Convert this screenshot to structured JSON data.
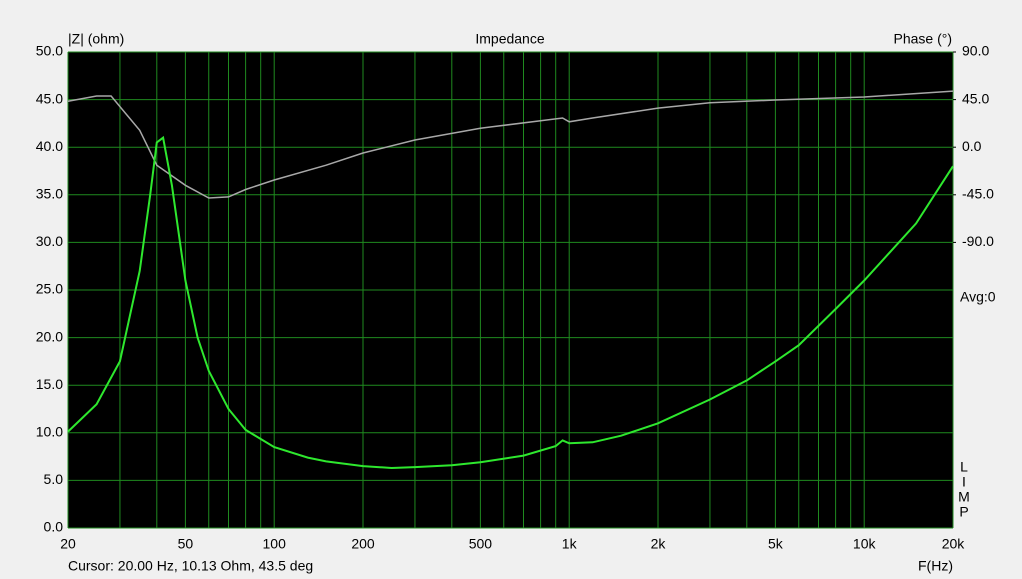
{
  "chart_data": {
    "type": "line",
    "title": "Impedance",
    "ylabel": "|Z| (ohm)",
    "y2label": "Phase (°)",
    "xlabel": "F(Hz)",
    "cursor": "Cursor: 20.00 Hz, 10.13 Ohm, 43.5 deg",
    "avg": "Avg:0",
    "side_label": [
      "L",
      "I",
      "M",
      "P"
    ],
    "xscale": "log",
    "xlim": [
      20,
      20000
    ],
    "xticks": [
      20,
      50,
      100,
      200,
      500,
      {
        "value": 1000,
        "label": "1k"
      },
      {
        "value": 2000,
        "label": "2k"
      },
      {
        "value": 5000,
        "label": "5k"
      },
      {
        "value": 10000,
        "label": "10k"
      },
      {
        "value": 20000,
        "label": "20k"
      }
    ],
    "xminor": [
      30,
      40,
      60,
      70,
      80,
      90,
      300,
      400,
      600,
      700,
      800,
      900,
      3000,
      4000,
      6000,
      7000,
      8000,
      9000
    ],
    "ylim": [
      0,
      50
    ],
    "yticks": [
      {
        "value": 0,
        "label": "0.0"
      },
      {
        "value": 5,
        "label": "5.0"
      },
      {
        "value": 10,
        "label": "10.0"
      },
      {
        "value": 15,
        "label": "15.0"
      },
      {
        "value": 20,
        "label": "20.0"
      },
      {
        "value": 25,
        "label": "25.0"
      },
      {
        "value": 30,
        "label": "30.0"
      },
      {
        "value": 35,
        "label": "35.0"
      },
      {
        "value": 40,
        "label": "40.0"
      },
      {
        "value": 45,
        "label": "45.0"
      },
      {
        "value": 50,
        "label": "50.0"
      }
    ],
    "y2lim": [
      -360,
      90
    ],
    "y2ticks": [
      {
        "value": 90,
        "label": "90.0"
      },
      {
        "value": 45,
        "label": "45.0"
      },
      {
        "value": 0,
        "label": "0.0"
      },
      {
        "value": -45,
        "label": "-45.0"
      },
      {
        "value": -90,
        "label": "-90.0"
      }
    ],
    "grid": true,
    "grid_color": "#1f8a1f",
    "background": "#000000",
    "series": [
      {
        "color": "#2ee82e",
        "x": [
          20,
          25,
          30,
          35,
          38,
          40,
          42,
          45,
          50,
          55,
          60,
          70,
          80,
          100,
          130,
          150,
          200,
          250,
          300,
          400,
          500,
          700,
          900,
          950,
          1000,
          1200,
          1500,
          2000,
          3000,
          4000,
          5000,
          6000,
          8000,
          10000,
          15000,
          20000
        ],
        "values": [
          10.13,
          13,
          17.5,
          27,
          35,
          40.5,
          41,
          36,
          26,
          20,
          16.5,
          12.5,
          10.3,
          8.5,
          7.4,
          7.0,
          6.5,
          6.3,
          6.4,
          6.6,
          6.9,
          7.6,
          8.6,
          9.2,
          8.9,
          9.0,
          9.7,
          11.0,
          13.5,
          15.5,
          17.5,
          19.2,
          23.0,
          26.0,
          32.0,
          38.0
        ]
      },
      {
        "color": "#a8a8a8",
        "axis": "y2",
        "x": [
          20,
          25,
          28,
          35,
          40,
          50,
          60,
          70,
          80,
          100,
          150,
          200,
          300,
          500,
          800,
          950,
          1000,
          1200,
          2000,
          3000,
          5000,
          10000,
          20000
        ],
        "values": [
          43.5,
          48.4,
          48.4,
          16,
          -17,
          -36,
          -48,
          -47,
          -40,
          -31,
          -17,
          -5.5,
          6.8,
          18,
          25,
          27.6,
          24,
          27.6,
          37,
          42,
          44.6,
          47.5,
          53
        ]
      }
    ]
  }
}
